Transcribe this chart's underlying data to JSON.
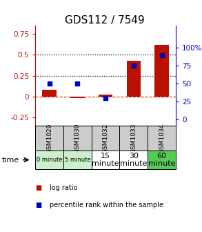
{
  "title": "GDS112 / 7549",
  "samples": [
    "GSM1029",
    "GSM1030",
    "GSM1032",
    "GSM1033",
    "GSM1034"
  ],
  "log_ratio": [
    0.08,
    -0.02,
    0.02,
    0.43,
    0.62
  ],
  "percentile_rank": [
    50,
    50,
    30,
    75,
    90
  ],
  "time_labels": [
    "0 minute",
    "5 minute",
    "15\nminute",
    "30\nminute",
    "60\nminute"
  ],
  "time_colors": [
    "#ccf0cc",
    "#ccf0cc",
    "#ffffff",
    "#ffffff",
    "#55cc55"
  ],
  "time_small": [
    true,
    true,
    false,
    false,
    false
  ],
  "left_ylim": [
    -0.35,
    0.85
  ],
  "right_ylim": [
    -8.75,
    131.25
  ],
  "left_yticks": [
    -0.25,
    0.0,
    0.25,
    0.5,
    0.75
  ],
  "left_yticklabels": [
    "-0.25",
    "0",
    "0.25",
    "0.5",
    "0.75"
  ],
  "right_yticks": [
    0,
    25,
    50,
    75,
    100
  ],
  "right_yticklabels": [
    "0",
    "25",
    "50",
    "75",
    "100%"
  ],
  "hlines_y": [
    0.25,
    0.5
  ],
  "bar_color": "#bb1100",
  "scatter_color": "#0000bb",
  "bar_width": 0.5,
  "zero_line_color": "#cc2200",
  "sample_bg_color": "#cccccc",
  "legend_bar_label": "log ratio",
  "legend_scatter_label": "percentile rank within the sample",
  "title_fontsize": 11,
  "tick_fontsize": 7.5
}
